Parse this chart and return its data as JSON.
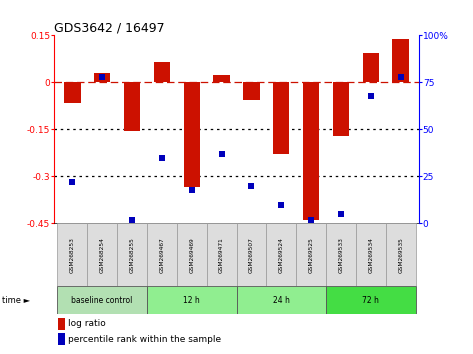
{
  "title": "GDS3642 / 16497",
  "samples": [
    "GSM268253",
    "GSM268254",
    "GSM268255",
    "GSM269467",
    "GSM269469",
    "GSM269471",
    "GSM269507",
    "GSM269524",
    "GSM269525",
    "GSM269533",
    "GSM269534",
    "GSM269535"
  ],
  "log_ratio": [
    -0.065,
    0.03,
    -0.155,
    0.065,
    -0.335,
    0.025,
    -0.055,
    -0.23,
    -0.44,
    -0.17,
    0.095,
    0.14
  ],
  "percentile": [
    22,
    78,
    2,
    35,
    18,
    37,
    20,
    10,
    2,
    5,
    68,
    78
  ],
  "groups": [
    {
      "label": "baseline control",
      "start": 0,
      "end": 3,
      "color": "#b2e0b2"
    },
    {
      "label": "12 h",
      "start": 3,
      "end": 6,
      "color": "#90ee90"
    },
    {
      "label": "24 h",
      "start": 6,
      "end": 9,
      "color": "#90ee90"
    },
    {
      "label": "72 h",
      "start": 9,
      "end": 12,
      "color": "#44dd44"
    }
  ],
  "bar_color": "#cc1100",
  "dot_color": "#0000bb",
  "ylim_left": [
    -0.45,
    0.15
  ],
  "ylim_right": [
    0,
    100
  ],
  "yticks_left": [
    0.15,
    0.0,
    -0.15,
    -0.3,
    -0.45
  ],
  "yticks_right": [
    100,
    75,
    50,
    25,
    0
  ],
  "hlines": [
    0.0,
    -0.15,
    -0.3
  ],
  "hline_styles": [
    "dashdot",
    "dotted",
    "dotted"
  ],
  "hline_colors": [
    "#cc1100",
    "black",
    "black"
  ],
  "background_color": "#ffffff",
  "bar_width": 0.55,
  "dot_size": 18
}
